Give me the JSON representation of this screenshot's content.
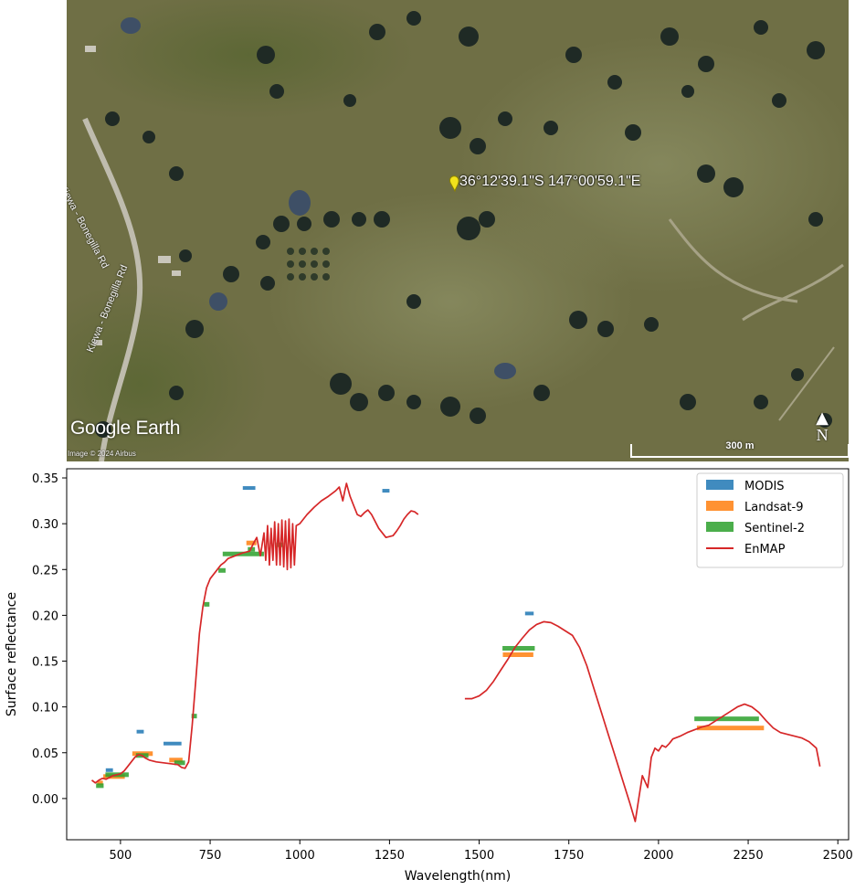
{
  "map": {
    "logo": "Google Earth",
    "imagery_credit": "Image © 2024 Airbus",
    "pin_label": "36°12'39.1\"S 147°00'59.1\"E",
    "road_label_1": "Kiewa - Bonegilla Rd",
    "road_label_2": "Kiewa - Bonegilla Rd",
    "north_label": "N",
    "scale_label": "300 m"
  },
  "chart_data": {
    "type": "line",
    "xlabel": "Wavelength(nm)",
    "ylabel": "Surface reflectance",
    "xlim": [
      350,
      2530
    ],
    "ylim": [
      -0.045,
      0.36
    ],
    "xticks": [
      500,
      750,
      1000,
      1250,
      1500,
      1750,
      2000,
      2250,
      2500
    ],
    "yticks": [
      0.0,
      0.05,
      0.1,
      0.15,
      0.2,
      0.25,
      0.3,
      0.35
    ],
    "legend_position": "top-right",
    "colors": {
      "MODIS": "#1f77b4",
      "Landsat-9": "#ff7f0e",
      "Sentinel-2": "#2ca02c",
      "EnMAP": "#d62728"
    },
    "series": [
      {
        "name": "MODIS",
        "type": "band",
        "bands": [
          {
            "x0": 459,
            "x1": 479,
            "y": 0.031
          },
          {
            "x0": 545,
            "x1": 565,
            "y": 0.073
          },
          {
            "x0": 620,
            "x1": 670,
            "y": 0.06
          },
          {
            "x0": 841,
            "x1": 876,
            "y": 0.339
          },
          {
            "x0": 1230,
            "x1": 1250,
            "y": 0.336
          },
          {
            "x0": 1628,
            "x1": 1652,
            "y": 0.202
          }
        ]
      },
      {
        "name": "Landsat-9",
        "type": "band",
        "bands": [
          {
            "x0": 435,
            "x1": 451,
            "y": 0.017
          },
          {
            "x0": 452,
            "x1": 512,
            "y": 0.024
          },
          {
            "x0": 533,
            "x1": 590,
            "y": 0.049
          },
          {
            "x0": 636,
            "x1": 673,
            "y": 0.042
          },
          {
            "x0": 851,
            "x1": 879,
            "y": 0.279
          },
          {
            "x0": 1566,
            "x1": 1651,
            "y": 0.157
          },
          {
            "x0": 2107,
            "x1": 2294,
            "y": 0.077
          }
        ]
      },
      {
        "name": "Sentinel-2",
        "type": "band",
        "bands": [
          {
            "x0": 432,
            "x1": 453,
            "y": 0.014
          },
          {
            "x0": 458,
            "x1": 523,
            "y": 0.026
          },
          {
            "x0": 543,
            "x1": 578,
            "y": 0.047
          },
          {
            "x0": 650,
            "x1": 680,
            "y": 0.039
          },
          {
            "x0": 698,
            "x1": 713,
            "y": 0.09
          },
          {
            "x0": 733,
            "x1": 748,
            "y": 0.212
          },
          {
            "x0": 773,
            "x1": 793,
            "y": 0.249
          },
          {
            "x0": 785,
            "x1": 900,
            "y": 0.267
          },
          {
            "x0": 855,
            "x1": 875,
            "y": 0.272
          },
          {
            "x0": 935,
            "x1": 955,
            "y": 0.277
          },
          {
            "x0": 1565,
            "x1": 1655,
            "y": 0.164
          },
          {
            "x0": 2100,
            "x1": 2280,
            "y": 0.087
          }
        ]
      },
      {
        "name": "EnMAP",
        "type": "line",
        "segments": [
          {
            "x": [
              420,
              430,
              440,
              450,
              460,
              470,
              480,
              490,
              500,
              510,
              520,
              530,
              540,
              550,
              560,
              570,
              580,
              590,
              600,
              620,
              640,
              660,
              670,
              680,
              690,
              700,
              710,
              720,
              730,
              740,
              750,
              760,
              770,
              780,
              790,
              800,
              820,
              840,
              860,
              870,
              880,
              890,
              900,
              905,
              910,
              915,
              920,
              925,
              930,
              935,
              940,
              945,
              950,
              955,
              960,
              965,
              970,
              975,
              980,
              985,
              990,
              1000,
              1020,
              1040,
              1060,
              1080,
              1100,
              1110,
              1120,
              1125,
              1130,
              1140,
              1150,
              1160,
              1170,
              1180,
              1190,
              1200,
              1220,
              1240,
              1260,
              1270,
              1280,
              1290,
              1300,
              1310,
              1320,
              1330
            ],
            "y": [
              0.02,
              0.017,
              0.02,
              0.022,
              0.021,
              0.023,
              0.025,
              0.026,
              0.027,
              0.03,
              0.035,
              0.04,
              0.045,
              0.048,
              0.047,
              0.044,
              0.042,
              0.041,
              0.04,
              0.039,
              0.038,
              0.037,
              0.034,
              0.033,
              0.04,
              0.08,
              0.13,
              0.18,
              0.21,
              0.23,
              0.24,
              0.245,
              0.25,
              0.255,
              0.258,
              0.262,
              0.265,
              0.268,
              0.27,
              0.278,
              0.285,
              0.265,
              0.29,
              0.26,
              0.298,
              0.255,
              0.295,
              0.26,
              0.302,
              0.255,
              0.3,
              0.255,
              0.304,
              0.253,
              0.303,
              0.25,
              0.305,
              0.252,
              0.3,
              0.255,
              0.298,
              0.3,
              0.31,
              0.318,
              0.325,
              0.33,
              0.336,
              0.34,
              0.325,
              0.335,
              0.344,
              0.33,
              0.32,
              0.31,
              0.308,
              0.312,
              0.315,
              0.31,
              0.295,
              0.285,
              0.287,
              0.292,
              0.298,
              0.305,
              0.31,
              0.314,
              0.313,
              0.31
            ]
          },
          {
            "x": [
              1460,
              1480,
              1500,
              1520,
              1540,
              1560,
              1580,
              1600,
              1620,
              1640,
              1660,
              1680,
              1700,
              1720,
              1740,
              1760,
              1780,
              1800,
              1820,
              1840,
              1860,
              1880,
              1900,
              1920,
              1935,
              1945,
              1955,
              1970,
              1980,
              1990,
              2000,
              2010,
              2020,
              2030,
              2040,
              2060,
              2080,
              2100,
              2120,
              2140,
              2160,
              2180,
              2200,
              2220,
              2240,
              2260,
              2280,
              2300,
              2320,
              2340,
              2360,
              2380,
              2400,
              2420,
              2440,
              2450
            ],
            "y": [
              0.109,
              0.109,
              0.112,
              0.118,
              0.128,
              0.14,
              0.152,
              0.165,
              0.175,
              0.184,
              0.19,
              0.193,
              0.192,
              0.188,
              0.183,
              0.178,
              0.165,
              0.145,
              0.12,
              0.095,
              0.07,
              0.045,
              0.02,
              -0.005,
              -0.025,
              0.0,
              0.025,
              0.012,
              0.045,
              0.055,
              0.052,
              0.058,
              0.056,
              0.06,
              0.065,
              0.068,
              0.072,
              0.075,
              0.078,
              0.08,
              0.085,
              0.09,
              0.095,
              0.1,
              0.103,
              0.1,
              0.094,
              0.085,
              0.077,
              0.072,
              0.07,
              0.068,
              0.066,
              0.062,
              0.055,
              0.035
            ]
          }
        ]
      }
    ]
  }
}
